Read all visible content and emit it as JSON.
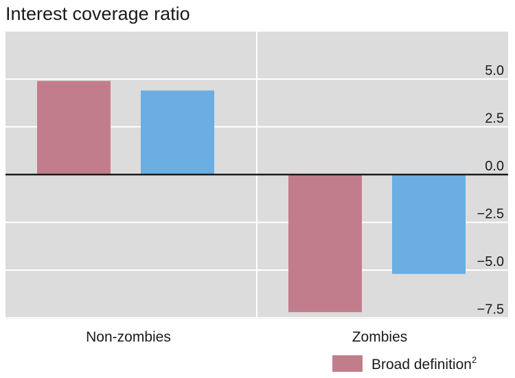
{
  "chart_data": {
    "type": "bar",
    "title": "Interest coverage ratio",
    "categories": [
      "Non-zombies",
      "Zombies"
    ],
    "series": [
      {
        "name": "Broad definition",
        "name_superscript": "2",
        "color": "#c27d8c",
        "values": [
          4.9,
          -7.2
        ]
      },
      {
        "name": "",
        "color": "#6aaee2",
        "values": [
          4.4,
          -5.2
        ]
      }
    ],
    "y_ticks": [
      5.0,
      2.5,
      0.0,
      -2.5,
      -5.0,
      -7.5
    ],
    "y_tick_labels": [
      "5.0",
      "2.5",
      "0.0",
      "−2.5",
      "−5.0",
      "−7.5"
    ],
    "ylim": [
      -7.5,
      7.5
    ],
    "y_axis_side": "right",
    "grid": true,
    "legend": "bottom-right",
    "colors": {
      "plot_background": "#dcdcdc",
      "gridline": "#ffffff",
      "zero_line": "#1a1a1a"
    }
  }
}
